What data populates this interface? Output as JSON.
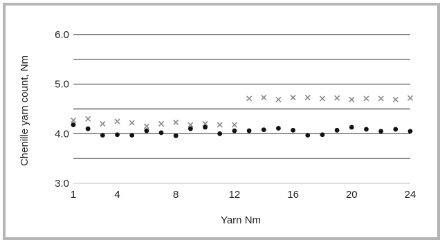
{
  "chart_data": {
    "type": "scatter",
    "title": "",
    "xlabel": "Yarn Nm",
    "ylabel": "Chenille yarn count, Nm",
    "xlim": [
      1,
      24
    ],
    "ylim": [
      3.0,
      6.0
    ],
    "xticks": [
      1,
      4,
      8,
      12,
      16,
      20,
      24
    ],
    "xtick_labels": [
      "1",
      "4",
      "8",
      "12",
      "16",
      "20",
      "24"
    ],
    "yticks": [
      3.0,
      3.5,
      4.0,
      4.5,
      5.0,
      5.5,
      6.0
    ],
    "ytick_labels": [
      "3.0",
      "",
      "4.0",
      "",
      "5.0",
      "",
      "6.0"
    ],
    "grid": true,
    "legend": "none",
    "series": [
      {
        "marker": "cross",
        "color": "#8a8a8a",
        "x": [
          1,
          2,
          3,
          4,
          5,
          6,
          7,
          8,
          9,
          10,
          11,
          12,
          13,
          14,
          15,
          16,
          17,
          18,
          19,
          20,
          21,
          22,
          23,
          24
        ],
        "y": [
          4.27,
          4.3,
          4.2,
          4.25,
          4.22,
          4.15,
          4.2,
          4.23,
          4.18,
          4.2,
          4.18,
          4.18,
          4.71,
          4.73,
          4.69,
          4.73,
          4.73,
          4.71,
          4.72,
          4.69,
          4.71,
          4.71,
          4.69,
          4.72
        ]
      },
      {
        "marker": "circle",
        "color": "#111111",
        "x": [
          1,
          2,
          3,
          4,
          5,
          6,
          7,
          8,
          9,
          10,
          11,
          12,
          13,
          14,
          15,
          16,
          17,
          18,
          19,
          20,
          21,
          22,
          23,
          24
        ],
        "y": [
          4.18,
          4.1,
          3.97,
          3.98,
          3.97,
          4.06,
          4.02,
          3.96,
          4.1,
          4.13,
          4.0,
          4.06,
          4.06,
          4.08,
          4.11,
          4.07,
          3.97,
          3.98,
          4.07,
          4.13,
          4.09,
          4.05,
          4.09,
          4.05
        ]
      }
    ]
  }
}
